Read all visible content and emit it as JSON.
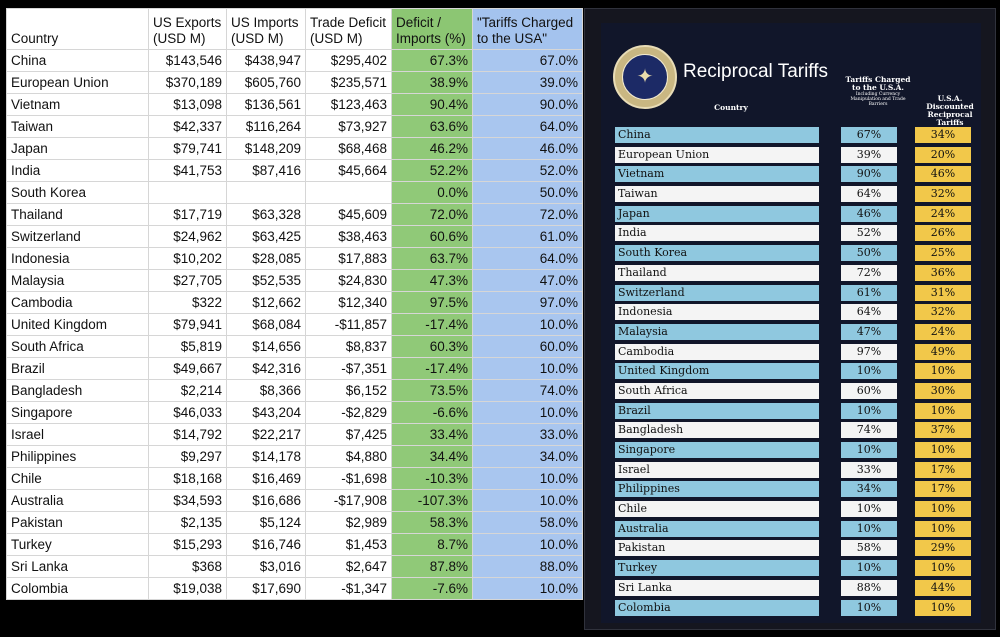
{
  "spreadsheet": {
    "headers": {
      "country": "Country",
      "exports": [
        "US Exports",
        "(USD M)"
      ],
      "imports": [
        "US Imports",
        "(USD M)"
      ],
      "deficit": [
        "Trade Deficit",
        "(USD M)"
      ],
      "ratio": [
        "Deficit /",
        "Imports (%)"
      ],
      "tariffs": [
        "\"Tariffs Charged",
        "to the USA\""
      ]
    },
    "rows": [
      [
        "China",
        "$143,546",
        "$438,947",
        "$295,402",
        "67.3%",
        "67.0%"
      ],
      [
        "European Union",
        "$370,189",
        "$605,760",
        "$235,571",
        "38.9%",
        "39.0%"
      ],
      [
        "Vietnam",
        "$13,098",
        "$136,561",
        "$123,463",
        "90.4%",
        "90.0%"
      ],
      [
        "Taiwan",
        "$42,337",
        "$116,264",
        "$73,927",
        "63.6%",
        "64.0%"
      ],
      [
        "Japan",
        "$79,741",
        "$148,209",
        "$68,468",
        "46.2%",
        "46.0%"
      ],
      [
        "India",
        "$41,753",
        "$87,416",
        "$45,664",
        "52.2%",
        "52.0%"
      ],
      [
        "South Korea",
        "",
        "",
        "",
        "0.0%",
        "50.0%"
      ],
      [
        "Thailand",
        "$17,719",
        "$63,328",
        "$45,609",
        "72.0%",
        "72.0%"
      ],
      [
        "Switzerland",
        "$24,962",
        "$63,425",
        "$38,463",
        "60.6%",
        "61.0%"
      ],
      [
        "Indonesia",
        "$10,202",
        "$28,085",
        "$17,883",
        "63.7%",
        "64.0%"
      ],
      [
        "Malaysia",
        "$27,705",
        "$52,535",
        "$24,830",
        "47.3%",
        "47.0%"
      ],
      [
        "Cambodia",
        "$322",
        "$12,662",
        "$12,340",
        "97.5%",
        "97.0%"
      ],
      [
        "United Kingdom",
        "$79,941",
        "$68,084",
        "-$11,857",
        "-17.4%",
        "10.0%"
      ],
      [
        "South Africa",
        "$5,819",
        "$14,656",
        "$8,837",
        "60.3%",
        "60.0%"
      ],
      [
        "Brazil",
        "$49,667",
        "$42,316",
        "-$7,351",
        "-17.4%",
        "10.0%"
      ],
      [
        "Bangladesh",
        "$2,214",
        "$8,366",
        "$6,152",
        "73.5%",
        "74.0%"
      ],
      [
        "Singapore",
        "$46,033",
        "$43,204",
        "-$2,829",
        "-6.6%",
        "10.0%"
      ],
      [
        "Israel",
        "$14,792",
        "$22,217",
        "$7,425",
        "33.4%",
        "33.0%"
      ],
      [
        "Philippines",
        "$9,297",
        "$14,178",
        "$4,880",
        "34.4%",
        "34.0%"
      ],
      [
        "Chile",
        "$18,168",
        "$16,469",
        "-$1,698",
        "-10.3%",
        "10.0%"
      ],
      [
        "Australia",
        "$34,593",
        "$16,686",
        "-$17,908",
        "-107.3%",
        "10.0%"
      ],
      [
        "Pakistan",
        "$2,135",
        "$5,124",
        "$2,989",
        "58.3%",
        "58.0%"
      ],
      [
        "Turkey",
        "$15,293",
        "$16,746",
        "$1,453",
        "8.7%",
        "10.0%"
      ],
      [
        "Sri Lanka",
        "$368",
        "$3,016",
        "$2,647",
        "87.8%",
        "88.0%"
      ],
      [
        "Colombia",
        "$19,038",
        "$17,690",
        "-$1,347",
        "-7.6%",
        "10.0%"
      ]
    ]
  },
  "board": {
    "title": "Reciprocal Tariffs",
    "seal_text": "PRESIDENT OF THE UNITED STATES",
    "headers": {
      "country": "Country",
      "charged": "Tariffs Charged to the U.S.A.",
      "charged_sub": "Including Currency Manipulation and Trade Barriers",
      "discounted": "U.S.A. Discounted Reciprocal Tariffs"
    },
    "colors": {
      "blue_row": "#8fc8df",
      "white_row": "#f4f4f4",
      "discount": "#f2c84a",
      "background": "#11162a"
    },
    "rows": [
      {
        "country": "China",
        "charged": "67%",
        "discounted": "34%",
        "style": "blue"
      },
      {
        "country": "European Union",
        "charged": "39%",
        "discounted": "20%",
        "style": "white"
      },
      {
        "country": "Vietnam",
        "charged": "90%",
        "discounted": "46%",
        "style": "blue"
      },
      {
        "country": "Taiwan",
        "charged": "64%",
        "discounted": "32%",
        "style": "white"
      },
      {
        "country": "Japan",
        "charged": "46%",
        "discounted": "24%",
        "style": "blue"
      },
      {
        "country": "India",
        "charged": "52%",
        "discounted": "26%",
        "style": "white"
      },
      {
        "country": "South Korea",
        "charged": "50%",
        "discounted": "25%",
        "style": "blue"
      },
      {
        "country": "Thailand",
        "charged": "72%",
        "discounted": "36%",
        "style": "white"
      },
      {
        "country": "Switzerland",
        "charged": "61%",
        "discounted": "31%",
        "style": "blue"
      },
      {
        "country": "Indonesia",
        "charged": "64%",
        "discounted": "32%",
        "style": "white"
      },
      {
        "country": "Malaysia",
        "charged": "47%",
        "discounted": "24%",
        "style": "blue"
      },
      {
        "country": "Cambodia",
        "charged": "97%",
        "discounted": "49%",
        "style": "white"
      },
      {
        "country": "United Kingdom",
        "charged": "10%",
        "discounted": "10%",
        "style": "blue"
      },
      {
        "country": "South Africa",
        "charged": "60%",
        "discounted": "30%",
        "style": "white"
      },
      {
        "country": "Brazil",
        "charged": "10%",
        "discounted": "10%",
        "style": "blue"
      },
      {
        "country": "Bangladesh",
        "charged": "74%",
        "discounted": "37%",
        "style": "white"
      },
      {
        "country": "Singapore",
        "charged": "10%",
        "discounted": "10%",
        "style": "blue"
      },
      {
        "country": "Israel",
        "charged": "33%",
        "discounted": "17%",
        "style": "white"
      },
      {
        "country": "Philippines",
        "charged": "34%",
        "discounted": "17%",
        "style": "blue"
      },
      {
        "country": "Chile",
        "charged": "10%",
        "discounted": "10%",
        "style": "white"
      },
      {
        "country": "Australia",
        "charged": "10%",
        "discounted": "10%",
        "style": "blue"
      },
      {
        "country": "Pakistan",
        "charged": "58%",
        "discounted": "29%",
        "style": "white"
      },
      {
        "country": "Turkey",
        "charged": "10%",
        "discounted": "10%",
        "style": "blue"
      },
      {
        "country": "Sri Lanka",
        "charged": "88%",
        "discounted": "44%",
        "style": "white"
      },
      {
        "country": "Colombia",
        "charged": "10%",
        "discounted": "10%",
        "style": "blue"
      }
    ]
  }
}
